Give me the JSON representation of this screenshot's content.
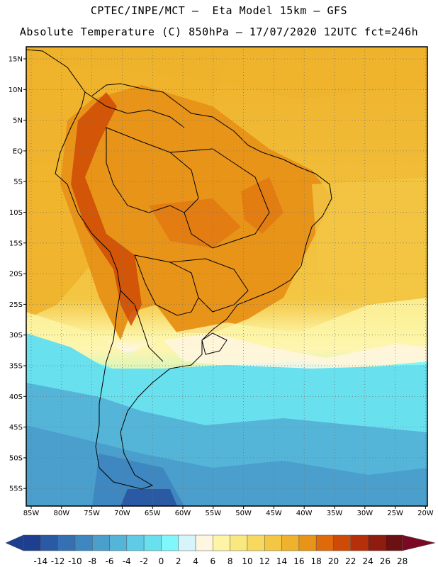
{
  "header": {
    "line1": "CPTEC/INPE/MCT –  Eta Model 15km – GFS",
    "line2": "Absolute Temperature (C) 850hPa – 17/07/2020 12UTC fct=246h"
  },
  "map": {
    "lat_labels": [
      "15N",
      "10N",
      "5N",
      "EQ",
      "5S",
      "10S",
      "15S",
      "20S",
      "25S",
      "30S",
      "35S",
      "40S",
      "45S",
      "50S",
      "55S"
    ],
    "lon_labels": [
      "85W",
      "80W",
      "75W",
      "70W",
      "65W",
      "60W",
      "55W",
      "50W",
      "45W",
      "40W",
      "35W",
      "30W",
      "25W",
      "20W"
    ],
    "lat_extent": [
      -58,
      18
    ],
    "lon_extent": [
      -86,
      -20
    ],
    "gridlines": "dotted"
  },
  "colorbar": {
    "labels": [
      "-14",
      "-12",
      "-10",
      "-8",
      "-6",
      "-4",
      "-2",
      "0",
      "2",
      "4",
      "6",
      "8",
      "10",
      "12",
      "14",
      "16",
      "18",
      "20",
      "22",
      "24",
      "26",
      "28"
    ],
    "colors": [
      "#1e3f8f",
      "#2a5aa3",
      "#3570b2",
      "#3e87c0",
      "#4a9fcd",
      "#55b5d9",
      "#5fcbe4",
      "#68e0ee",
      "#7ff7fb",
      "#d6f5fb",
      "#fff6e2",
      "#fdf5a5",
      "#f9e77f",
      "#f7d95f",
      "#f3c643",
      "#efb22c",
      "#e89419",
      "#df6a0c",
      "#cf4a06",
      "#b5300a",
      "#8e1d0f",
      "#6b1111",
      "#7a0a24"
    ]
  }
}
